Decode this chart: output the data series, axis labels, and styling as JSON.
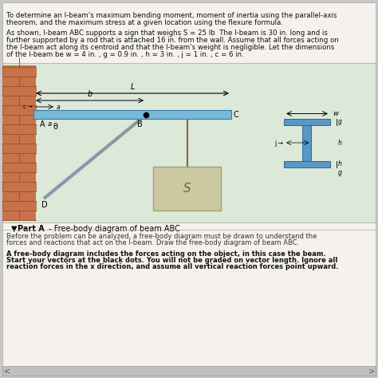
{
  "fig_bg": "#c8c8c8",
  "page_bg": "#f5f2ee",
  "diagram_bg": "#dce8d8",
  "wall_color": "#c8724a",
  "wall_mortar": "#b05530",
  "beam_color": "#78b8d8",
  "beam_edge": "#3878a0",
  "rod_color": "#8898a8",
  "sign_color": "#ccc8a0",
  "sign_edge": "#a0a078",
  "ibeam_fill": "#5898c8",
  "ibeam_edge": "#2868a0",
  "text_color": "#111111",
  "title_line1": "To determine an I-beam's maximum bending moment, moment of inertia using the parallel-axis",
  "title_line2": "theorem, and the maximum stress at a given location using the flexure formula.",
  "body_line1": "As shown, I-beam ABC supports a sign that weighs S = 25 lb  The I-beam is 30 in. long and is",
  "body_line2": "further supported by a rod that is attached 16 in. from the wall. Assume that all forces acting on",
  "body_line3": "the I-beam act along its centroid and that the I-beam's weight is negligible. Let the dimensions",
  "body_line4": "of the I-beam be w = 4 in. , g = 0.9 in. , h = 3 in. , j = 1 in. , c = 6 in.",
  "before_line1": "Before the problem can be analyzed, a free-body diagram must be drawn to understand the",
  "before_line2": "forces and reactions that act on the I-beam. Draw the free-body diagram of beam ABC.",
  "bold_line1": "A free-body diagram includes the forces acting on the object, in this case the beam.",
  "bold_line2": "Start your vectors at the black dots. You will not be graded on vector length. Ignore all",
  "bold_line3": "reaction forces in the x direction, and assume all vertical reaction forces point upward."
}
